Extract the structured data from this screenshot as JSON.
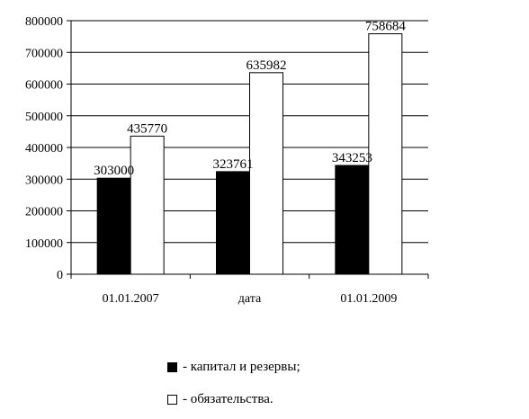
{
  "chart_data": {
    "type": "bar",
    "title": "",
    "xlabel": "",
    "ylabel": "",
    "categories": [
      "01.01.2007",
      "дата",
      "01.01.2009"
    ],
    "ylim": [
      0,
      800000
    ],
    "yticks": [
      0,
      100000,
      200000,
      300000,
      400000,
      500000,
      600000,
      700000,
      800000
    ],
    "grid": true,
    "legend_position": "bottom",
    "series": [
      {
        "values": [
          303000,
          323761,
          343253
        ],
        "color": "#000000"
      },
      {
        "values": [
          435770,
          635982,
          758684
        ],
        "color": "#ffffff"
      }
    ],
    "legend": [
      {
        "label": "- капитал и резервы;",
        "color": "#000000"
      },
      {
        "label": "- обязательства.",
        "color": "#ffffff"
      }
    ]
  }
}
